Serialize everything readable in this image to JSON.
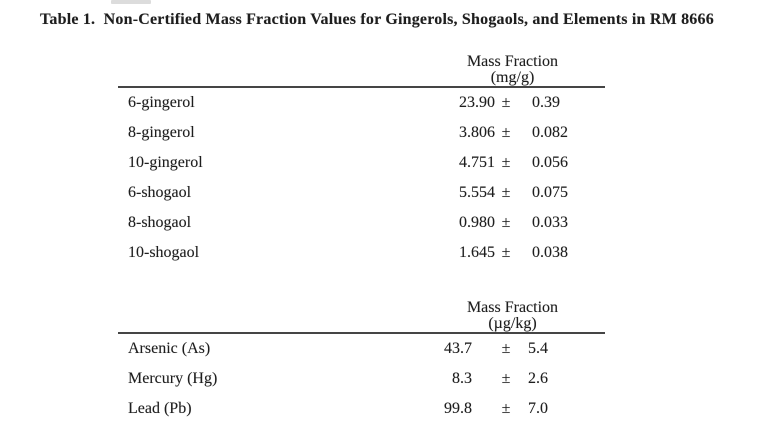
{
  "document": {
    "title": "Table 1.  Non-Certified Mass Fraction Values for Gingerols, Shogaols, and Elements in RM 8666"
  },
  "tables": [
    {
      "header": {
        "title": "Mass Fraction",
        "unit": "(mg/g)"
      },
      "rows": [
        {
          "label": "6-gingerol",
          "value": "23.90",
          "pm": "±",
          "uncertainty": "0.39"
        },
        {
          "label": "8-gingerol",
          "value": "3.806",
          "pm": "±",
          "uncertainty": "0.082"
        },
        {
          "label": "10-gingerol",
          "value": "4.751",
          "pm": "±",
          "uncertainty": "0.056"
        },
        {
          "label": "6-shogaol",
          "value": "5.554",
          "pm": "±",
          "uncertainty": "0.075"
        },
        {
          "label": "8-shogaol",
          "value": "0.980",
          "pm": "±",
          "uncertainty": "0.033"
        },
        {
          "label": "10-shogaol",
          "value": "1.645",
          "pm": "±",
          "uncertainty": "0.038"
        }
      ]
    },
    {
      "header": {
        "title": "Mass Fraction",
        "unit": "(µg/kg)"
      },
      "rows": [
        {
          "label": "Arsenic (As)",
          "value": "43.7",
          "pm": "±",
          "uncertainty": "5.4"
        },
        {
          "label": "Mercury (Hg)",
          "value": "8.3",
          "pm": "±",
          "uncertainty": "2.6"
        },
        {
          "label": "Lead (Pb)",
          "value": "99.8",
          "pm": "±",
          "uncertainty": "7.0"
        }
      ]
    }
  ]
}
